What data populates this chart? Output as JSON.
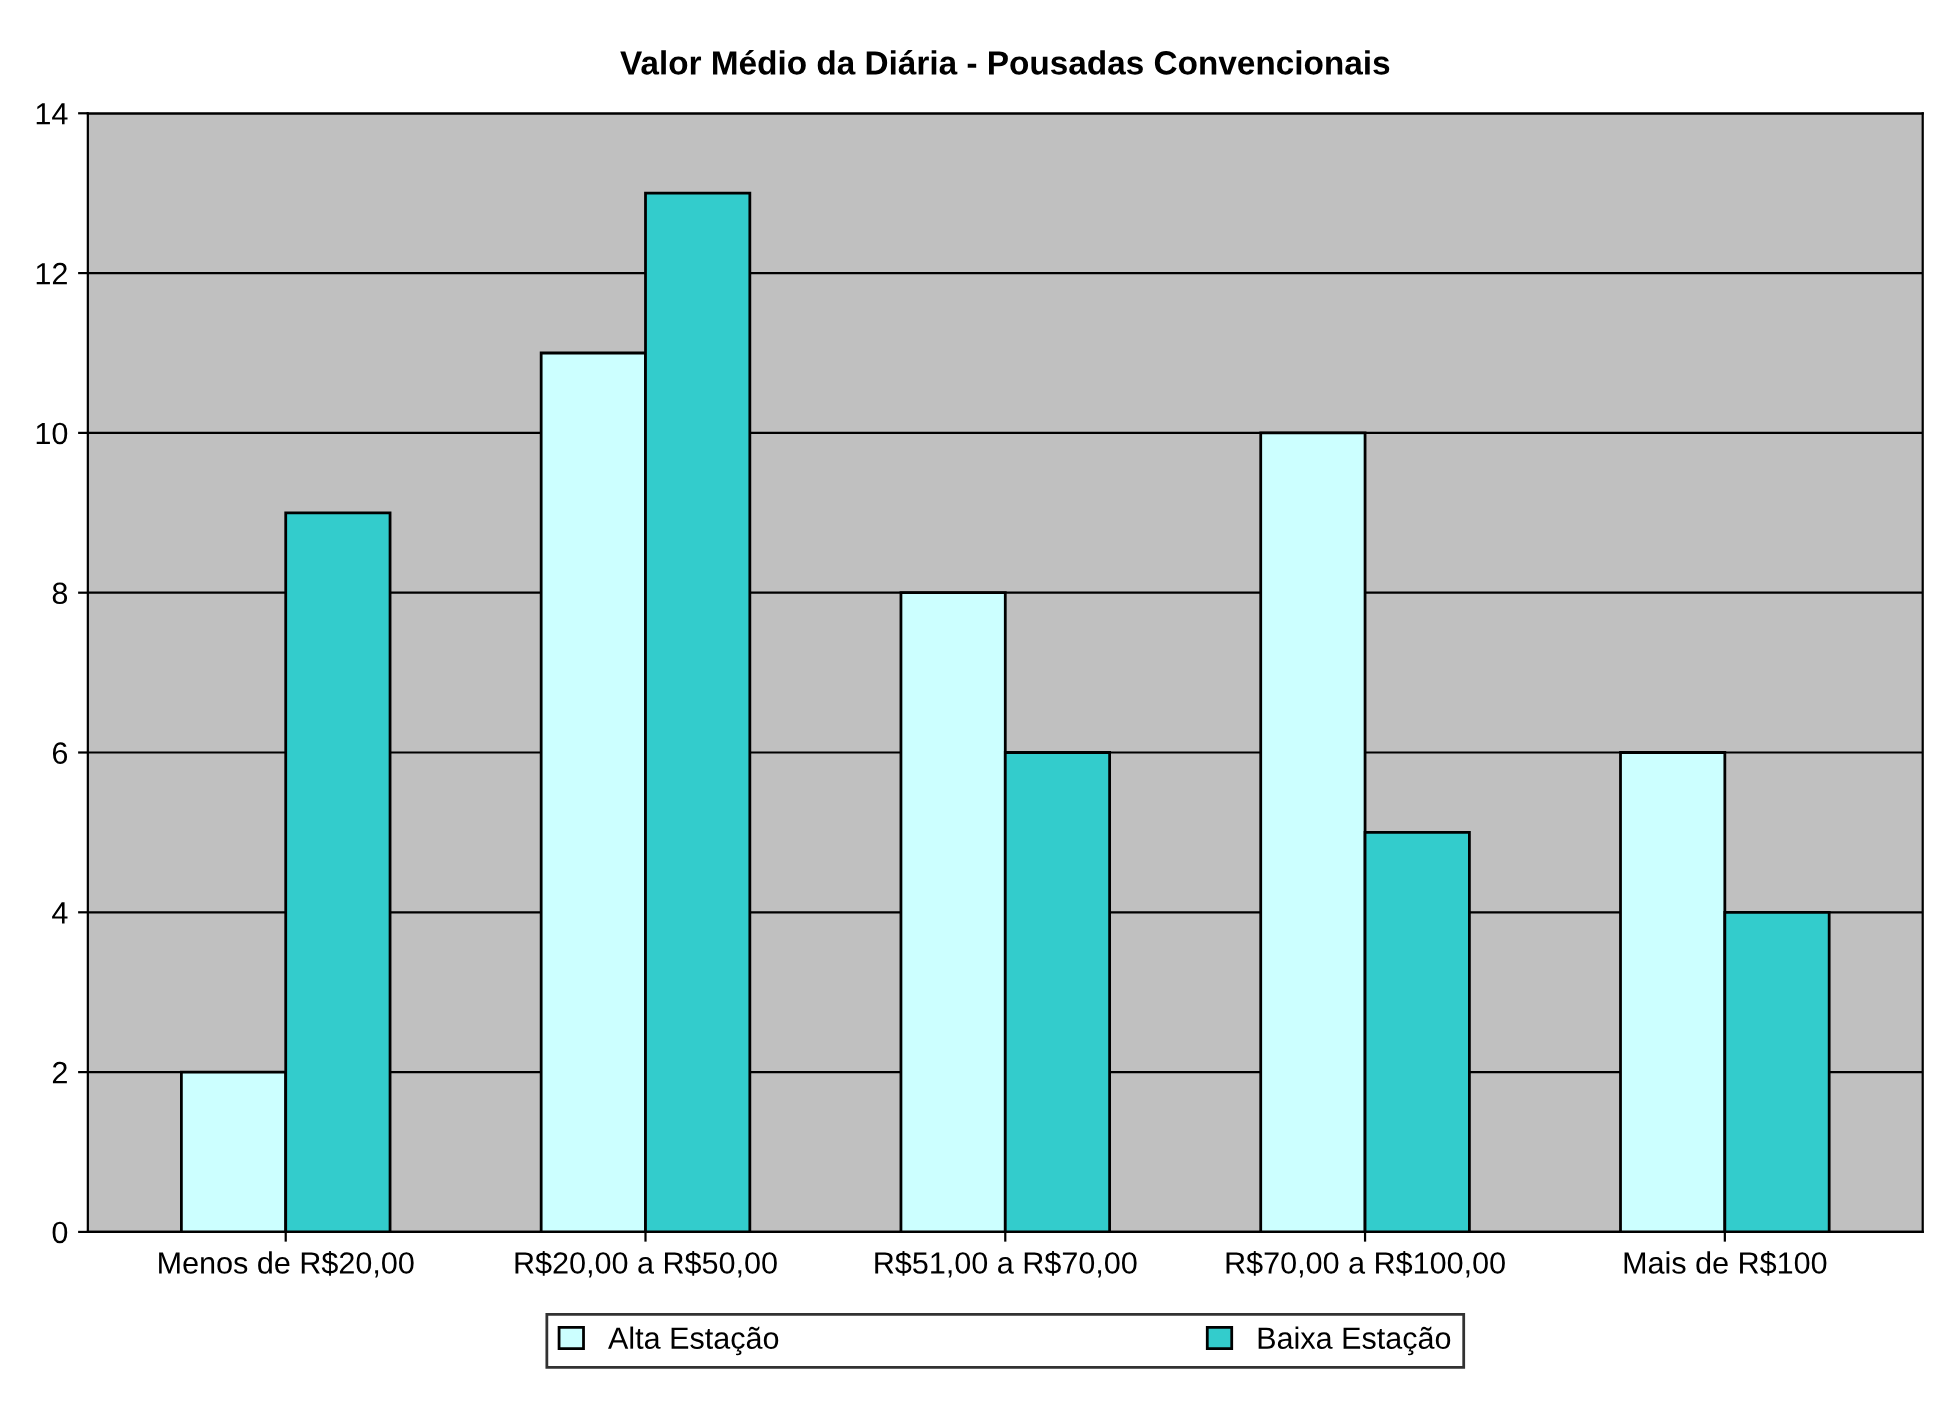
{
  "chart_data": {
    "type": "bar",
    "title": "Valor Médio da Diária - Pousadas Convencionais",
    "categories": [
      "Menos de R$20,00",
      "R$20,00 a R$50,00",
      "R$51,00 a R$70,00",
      "R$70,00 a R$100,00",
      "Mais de R$100"
    ],
    "series": [
      {
        "name": "Alta Estação",
        "color": "#ccffff",
        "values": [
          2,
          11,
          8,
          10,
          6
        ]
      },
      {
        "name": "Baixa Estação",
        "color": "#33cccc",
        "values": [
          9,
          13,
          6,
          5,
          4
        ]
      }
    ],
    "ylim": [
      0,
      14
    ],
    "yticks": [
      0,
      2,
      4,
      6,
      8,
      10,
      12,
      14
    ],
    "grid": "y",
    "legend": "bottom"
  }
}
